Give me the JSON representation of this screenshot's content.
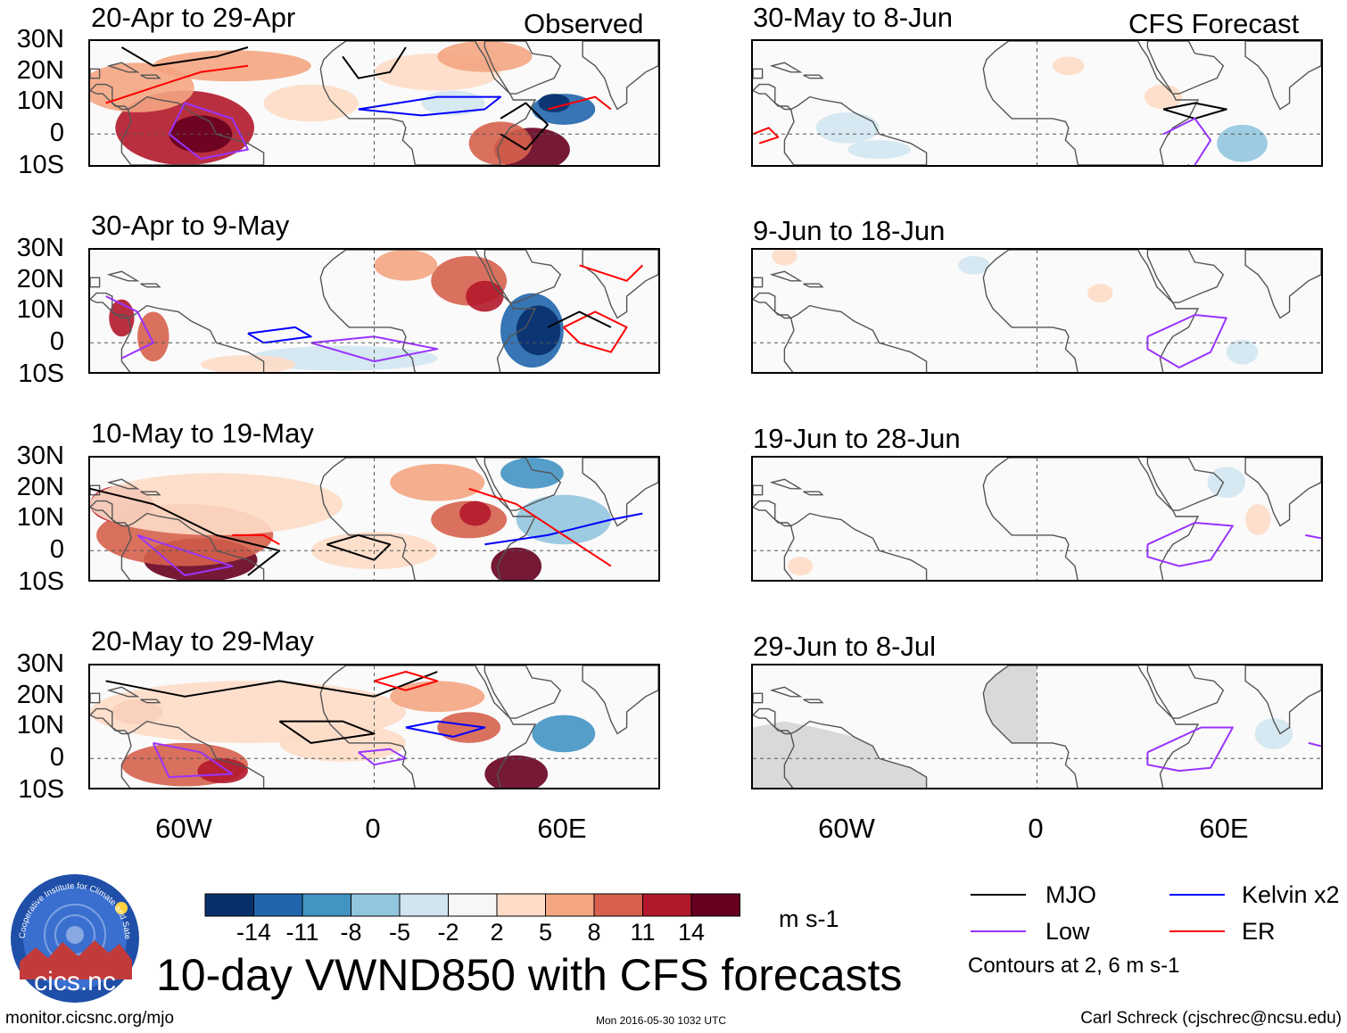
{
  "observed_label": "Observed",
  "forecast_label": "CFS Forecast",
  "panels_left": [
    {
      "title": "20-Apr to 29-Apr"
    },
    {
      "title": "30-Apr to 9-May"
    },
    {
      "title": "10-May to 19-May"
    },
    {
      "title": "20-May to 29-May"
    }
  ],
  "panels_right": [
    {
      "title": "30-May to 8-Jun"
    },
    {
      "title": "9-Jun to 18-Jun"
    },
    {
      "title": "19-Jun to 28-Jun"
    },
    {
      "title": "29-Jun to 8-Jul"
    }
  ],
  "y_labels": [
    "30N",
    "20N",
    "10N",
    "0",
    "10S"
  ],
  "x_labels": [
    "60W",
    "0",
    "60E"
  ],
  "colorbar": {
    "colors": [
      "#08306b",
      "#2166ac",
      "#4393c3",
      "#92c5de",
      "#d1e5f0",
      "#f7f7f7",
      "#fddbc7",
      "#f4a582",
      "#d6604d",
      "#b2182b",
      "#67001f"
    ],
    "labels": [
      "-14",
      "-11",
      "-8",
      "-5",
      "-2",
      "2",
      "5",
      "8",
      "11",
      "14"
    ],
    "units": "m s-1"
  },
  "main_title": "10-day VWND850 with CFS forecasts",
  "legend": {
    "mjo": {
      "label": "MJO",
      "color": "#000000"
    },
    "kelvin": {
      "label": "Kelvin x2",
      "color": "#0000ff"
    },
    "low": {
      "label": "Low",
      "color": "#9933ff"
    },
    "er": {
      "label": "ER",
      "color": "#ff0000"
    },
    "note": "Contours at 2, 6 m s-1"
  },
  "logo_text": "cics.nc",
  "logo_ring_text": "Cooperative Institute for Climate and Satellites",
  "footer": {
    "url": "monitor.cicsnc.org/mjo",
    "timestamp": "Mon 2016-05-30 1032 UTC",
    "author": "Carl Schreck (cjschrec@ncsu.edu)"
  }
}
